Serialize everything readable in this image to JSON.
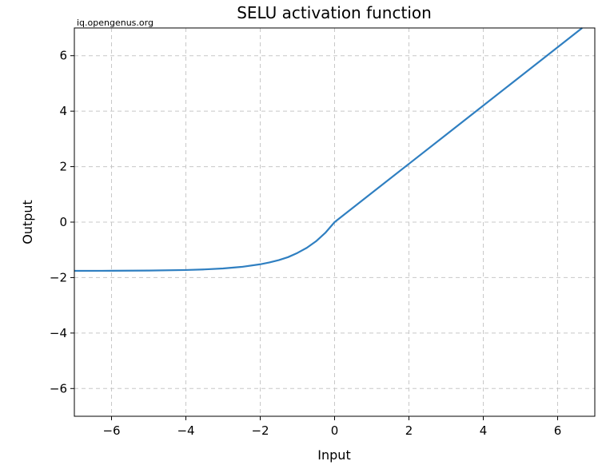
{
  "watermark": "iq.opengenus.org",
  "chart_data": {
    "type": "line",
    "title": "SELU activation function",
    "xlabel": "Input",
    "ylabel": "Output",
    "xlim": [
      -7,
      7
    ],
    "ylim": [
      -7,
      7
    ],
    "xticks": [
      -6,
      -4,
      -2,
      0,
      2,
      4,
      6
    ],
    "yticks": [
      -6,
      -4,
      -2,
      0,
      2,
      4,
      6
    ],
    "grid": true,
    "grid_style": "dashed",
    "series": [
      {
        "color": "#2f7fc1",
        "x": [
          -7,
          -6,
          -5,
          -4,
          -3.5,
          -3,
          -2.5,
          -2,
          -1.75,
          -1.5,
          -1.25,
          -1,
          -0.75,
          -0.5,
          -0.25,
          0,
          1,
          2,
          3,
          4,
          5,
          6,
          6.66
        ],
        "y": [
          -1.757,
          -1.754,
          -1.746,
          -1.726,
          -1.705,
          -1.67,
          -1.614,
          -1.52,
          -1.453,
          -1.369,
          -1.262,
          -1.111,
          -0.929,
          -0.692,
          -0.388,
          0,
          1.051,
          2.101,
          3.152,
          4.203,
          5.254,
          6.304,
          7.0
        ]
      }
    ]
  }
}
